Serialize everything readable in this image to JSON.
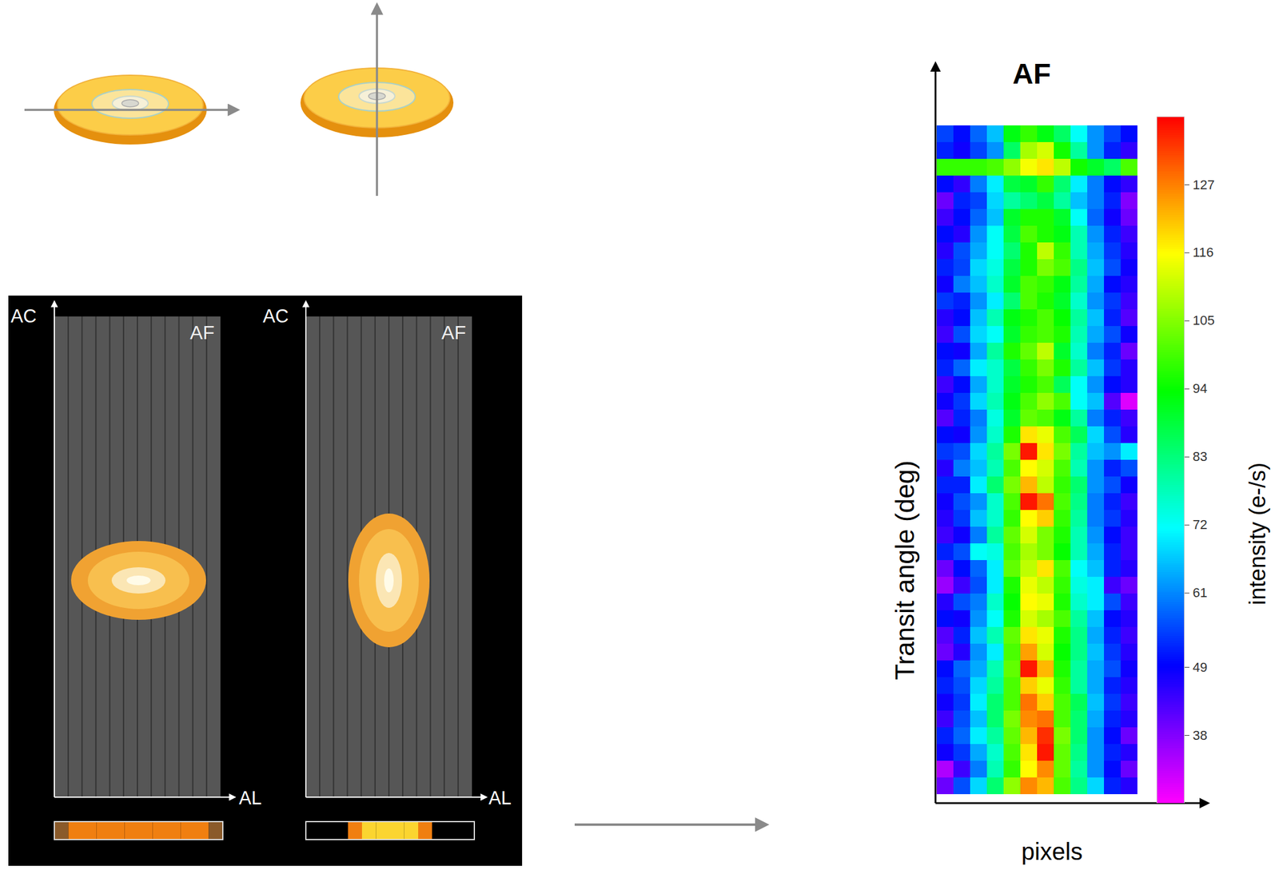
{
  "schematic": {
    "panels": [
      {
        "y_axis": "AC",
        "title": "AF",
        "x_axis": "AL"
      },
      {
        "y_axis": "AC",
        "title": "AF",
        "x_axis": "AL"
      }
    ]
  },
  "chart_data": {
    "type": "heatmap",
    "title": "AF",
    "x_label": "pixels",
    "y_label": "Transit angle (deg)",
    "tick_labels": false,
    "cells": [
      [
        55,
        50,
        58,
        66,
        92,
        98,
        92,
        85,
        72,
        62,
        55,
        50
      ],
      [
        52,
        48,
        55,
        62,
        85,
        108,
        112,
        95,
        80,
        62,
        52,
        45
      ],
      [
        98,
        98,
        98,
        100,
        106,
        115,
        118,
        110,
        95,
        90,
        85,
        100
      ],
      [
        50,
        45,
        60,
        70,
        88,
        90,
        98,
        84,
        70,
        60,
        50,
        45
      ],
      [
        40,
        52,
        55,
        68,
        80,
        84,
        88,
        80,
        66,
        60,
        52,
        38
      ],
      [
        44,
        50,
        58,
        66,
        90,
        96,
        96,
        90,
        72,
        58,
        48,
        40
      ],
      [
        50,
        46,
        62,
        72,
        88,
        100,
        96,
        92,
        78,
        62,
        52,
        44
      ],
      [
        46,
        56,
        64,
        72,
        84,
        96,
        110,
        98,
        78,
        64,
        54,
        46
      ],
      [
        52,
        55,
        68,
        74,
        88,
        96,
        104,
        100,
        82,
        66,
        56,
        48
      ],
      [
        48,
        60,
        66,
        76,
        90,
        100,
        98,
        92,
        80,
        64,
        50,
        46
      ],
      [
        54,
        52,
        62,
        70,
        84,
        100,
        96,
        90,
        76,
        62,
        54,
        44
      ],
      [
        46,
        50,
        66,
        78,
        92,
        96,
        100,
        94,
        80,
        66,
        52,
        42
      ],
      [
        44,
        56,
        68,
        72,
        90,
        98,
        100,
        96,
        78,
        64,
        56,
        48
      ],
      [
        50,
        48,
        64,
        80,
        96,
        102,
        110,
        90,
        76,
        60,
        52,
        40
      ],
      [
        52,
        58,
        70,
        76,
        88,
        98,
        104,
        96,
        80,
        66,
        54,
        46
      ],
      [
        44,
        50,
        64,
        76,
        90,
        96,
        100,
        86,
        72,
        62,
        50,
        46
      ],
      [
        48,
        54,
        68,
        78,
        92,
        100,
        106,
        100,
        72,
        66,
        42,
        30
      ],
      [
        42,
        52,
        60,
        74,
        90,
        102,
        100,
        92,
        80,
        60,
        52,
        44
      ],
      [
        50,
        48,
        62,
        76,
        96,
        118,
        114,
        100,
        86,
        68,
        56,
        46
      ],
      [
        54,
        56,
        68,
        80,
        104,
        136,
        118,
        104,
        80,
        66,
        62,
        70
      ],
      [
        46,
        60,
        66,
        78,
        100,
        116,
        112,
        100,
        78,
        62,
        52,
        56
      ],
      [
        52,
        52,
        70,
        84,
        104,
        122,
        110,
        98,
        84,
        62,
        56,
        48
      ],
      [
        48,
        56,
        62,
        76,
        100,
        136,
        128,
        100,
        82,
        60,
        52,
        44
      ],
      [
        46,
        54,
        66,
        76,
        98,
        116,
        120,
        98,
        80,
        60,
        54,
        46
      ],
      [
        44,
        48,
        60,
        80,
        102,
        112,
        104,
        96,
        78,
        62,
        50,
        44
      ],
      [
        52,
        56,
        72,
        74,
        100,
        108,
        104,
        94,
        78,
        64,
        52,
        44
      ],
      [
        40,
        50,
        58,
        70,
        102,
        110,
        118,
        100,
        72,
        66,
        52,
        46
      ],
      [
        36,
        44,
        56,
        70,
        96,
        114,
        110,
        98,
        74,
        70,
        44,
        40
      ],
      [
        46,
        56,
        60,
        76,
        94,
        116,
        114,
        96,
        76,
        70,
        56,
        44
      ],
      [
        50,
        48,
        62,
        72,
        96,
        112,
        108,
        100,
        80,
        66,
        50,
        46
      ],
      [
        42,
        52,
        66,
        78,
        102,
        118,
        114,
        96,
        82,
        64,
        52,
        44
      ],
      [
        40,
        46,
        62,
        70,
        100,
        124,
        112,
        94,
        82,
        66,
        54,
        46
      ],
      [
        50,
        58,
        64,
        78,
        102,
        136,
        122,
        96,
        80,
        64,
        56,
        48
      ],
      [
        52,
        56,
        68,
        80,
        100,
        120,
        114,
        98,
        80,
        64,
        52,
        46
      ],
      [
        48,
        54,
        70,
        84,
        100,
        128,
        120,
        100,
        86,
        66,
        54,
        44
      ],
      [
        44,
        56,
        66,
        84,
        104,
        126,
        128,
        100,
        84,
        64,
        52,
        46
      ],
      [
        52,
        58,
        70,
        80,
        102,
        122,
        134,
        104,
        84,
        62,
        50,
        40
      ],
      [
        48,
        54,
        64,
        76,
        100,
        118,
        136,
        102,
        82,
        62,
        52,
        46
      ],
      [
        34,
        44,
        60,
        78,
        98,
        116,
        126,
        102,
        80,
        62,
        50,
        40
      ],
      [
        40,
        56,
        68,
        84,
        106,
        126,
        122,
        100,
        82,
        68,
        52,
        46
      ]
    ],
    "color_bar": {
      "label": "intensity (e-/s)",
      "range": [
        27,
        138
      ],
      "ticks": [
        38,
        49,
        61,
        72,
        83,
        94,
        105,
        116,
        127
      ]
    }
  }
}
